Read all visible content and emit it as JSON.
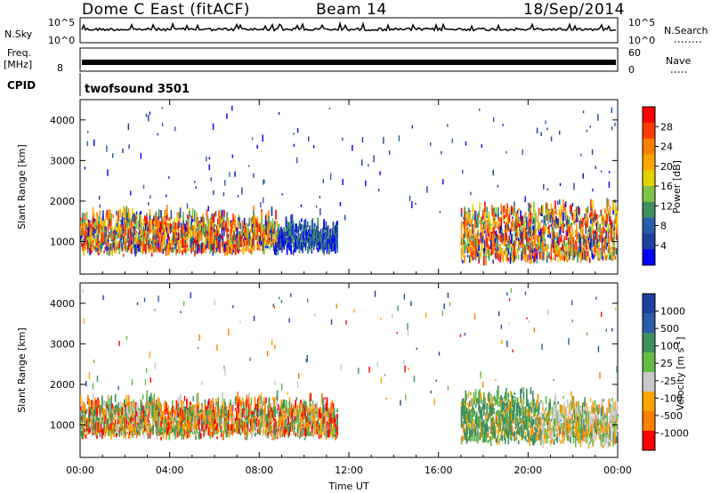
{
  "header": {
    "station": "Dome C East (fitACF)",
    "beam": "Beam 14",
    "date": "18/Sep/2014"
  },
  "params": {
    "nsky_label": "N.Sky",
    "nsky_ticks": [
      "10^5",
      "10^0"
    ],
    "nsearch_label": "N.Search",
    "nsearch_ticks": [
      "10^5",
      "10^0"
    ],
    "freq_label": "Freq.",
    "freq_unit": "[MHz]",
    "freq_ticks": [
      "8"
    ],
    "nave_label": "Nave",
    "nave_ticks": [
      "60",
      "0"
    ],
    "cpid_label": "CPID",
    "cpid_value": "twofsound 3501"
  },
  "chart_data": [
    {
      "type": "heatmap",
      "panel": "power",
      "ylabel": "Slant Range [km]",
      "yticks": [
        "4000",
        "3000",
        "2000",
        "1000"
      ],
      "ylim": [
        200,
        4500
      ],
      "xlim": [
        0,
        24
      ],
      "colorbar": {
        "label": "Power [dB]",
        "ticks": [
          "28",
          "24",
          "20",
          "16",
          "12",
          "8",
          "4"
        ],
        "colors": [
          "#ff0000",
          "#ff3b00",
          "#ff7f00",
          "#ffa500",
          "#e6d100",
          "#7fc24a",
          "#3f8f60",
          "#2a5ca8",
          "#1f3f9f",
          "#0000ff"
        ]
      },
      "echo_regions": [
        {
          "start_h": 0.0,
          "end_h": 8.8,
          "range_km": [
            650,
            1700
          ],
          "note": "strong"
        },
        {
          "start_h": 8.8,
          "end_h": 11.5,
          "range_km": [
            700,
            1500
          ],
          "note": "weak"
        },
        {
          "start_h": 17.0,
          "end_h": 24.0,
          "range_km": [
            450,
            1900
          ],
          "note": "strong"
        }
      ]
    },
    {
      "type": "heatmap",
      "panel": "velocity",
      "ylabel": "Slant Range [km]",
      "yticks": [
        "4000",
        "3000",
        "2000",
        "1000"
      ],
      "ylim": [
        200,
        4500
      ],
      "xlim": [
        0,
        24
      ],
      "xlabel": "Time UT",
      "xticks": [
        "00:00",
        "04:00",
        "08:00",
        "12:00",
        "16:00",
        "20:00",
        "00:00"
      ],
      "colorbar": {
        "label": "Velocity [m s",
        "label_sup": "-1",
        "label_end": "]",
        "ticks": [
          "1000",
          "500",
          "100",
          "25",
          "-25",
          "-100",
          "-500",
          "-1000"
        ],
        "colors": [
          "#1f3f9f",
          "#2a5ca8",
          "#3f8f60",
          "#66bb44",
          "#c8c8c8",
          "#ffa500",
          "#ff7f00",
          "#ff0000"
        ]
      },
      "echo_regions": [
        {
          "start_h": 0.0,
          "end_h": 11.5,
          "range_km": [
            650,
            1650
          ],
          "note": "negative"
        },
        {
          "start_h": 17.0,
          "end_h": 20.5,
          "range_km": [
            500,
            1800
          ],
          "note": "positive"
        },
        {
          "start_h": 20.5,
          "end_h": 24.0,
          "range_km": [
            450,
            1600
          ],
          "note": "mixed"
        }
      ]
    }
  ]
}
